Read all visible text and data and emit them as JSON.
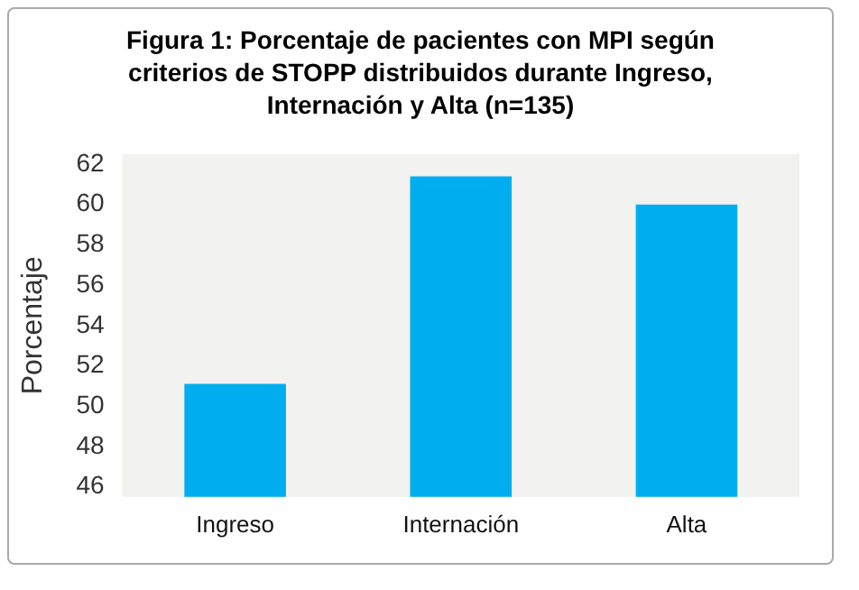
{
  "chart_data": {
    "type": "bar",
    "title": "Figura 1: Porcentaje de pacientes con MPI según criterios de STOPP distribuidos durante Ingreso, Internación y Alta (n=135)",
    "ylabel": "Porcentaje",
    "categories": [
      "Ingreso",
      "Internación",
      "Alta"
    ],
    "values": [
      51.1,
      61.4,
      60.0
    ],
    "color": "#00aeef",
    "ylim": [
      45.5,
      62.5
    ],
    "yticks": [
      46,
      48,
      50,
      52,
      54,
      56,
      58,
      60,
      62
    ],
    "grid": false,
    "legend": false
  }
}
